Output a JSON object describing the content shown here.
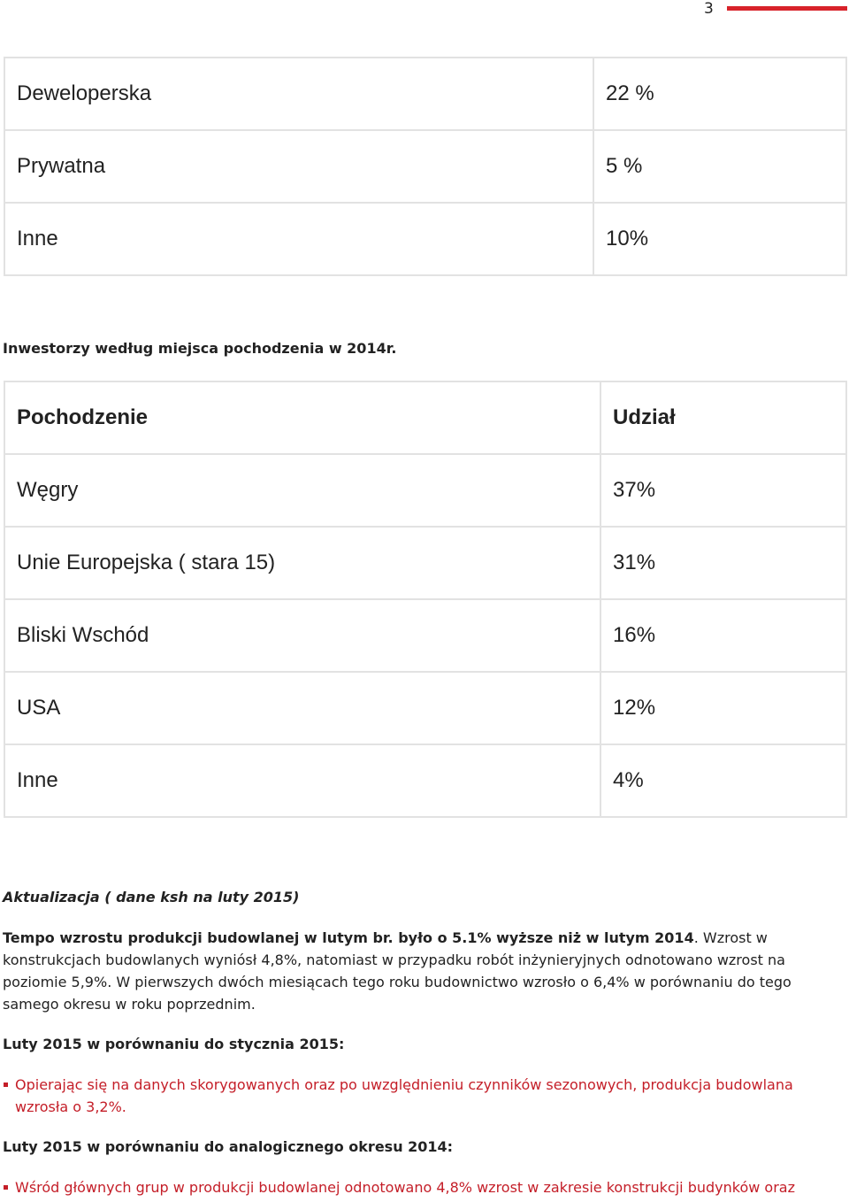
{
  "page": {
    "number": "3"
  },
  "table_investor_type": {
    "rows": [
      {
        "label": "Deweloperska",
        "value": "22 %"
      },
      {
        "label": "Prywatna",
        "value": "5 %"
      },
      {
        "label": "Inne",
        "value": "10%"
      }
    ]
  },
  "section_origin": {
    "title": "Inwestorzy według miejsca pochodzenia w 2014r."
  },
  "table_origin": {
    "headers": {
      "origin": "Pochodzenie",
      "share": "Udział"
    },
    "rows": [
      {
        "label": "Węgry",
        "value": "37%"
      },
      {
        "label": "Unie Europejska ( stara 15)",
        "value": "31%"
      },
      {
        "label": "Bliski Wschód",
        "value": "16%"
      },
      {
        "label": "USA",
        "value": "12%"
      },
      {
        "label": "Inne",
        "value": "4%"
      }
    ]
  },
  "update": {
    "title": "Aktualizacja ( dane ksh na luty 2015)",
    "lead_bold": "Tempo wzrostu produkcji budowlanej w lutym br. było o 5.1% wyższe niż w lutym 2014",
    "lead_rest": ". Wzrost w konstrukcjach budowlanych wyniósł 4,8%, natomiast w przypadku robót inżynieryjnych odnotowano wzrost na poziomie 5,9%. W pierwszych dwóch miesiącach tego roku budownictwo wzrosło o 6,4% w porównaniu do tego samego okresu w roku poprzednim."
  },
  "comparison_january": {
    "title": "Luty 2015 w porównaniu do stycznia 2015:",
    "bullet": "Opierając się na danych skorygowanych oraz po uwzględnieniu czynników sezonowych, produkcja budowlana wzrosła o 3,2%."
  },
  "comparison_2014": {
    "title": "Luty 2015 w porównaniu do analogicznego okresu 2014:",
    "bullet": "Wśród głównych grup w produkcji budowlanej odnotowano 4,8% wzrost w zakresie konstrukcji budynków oraz"
  },
  "colors": {
    "accent_red": "#d8222a",
    "bullet_red": "#c41e28",
    "table_border": "#e2e2e2"
  }
}
